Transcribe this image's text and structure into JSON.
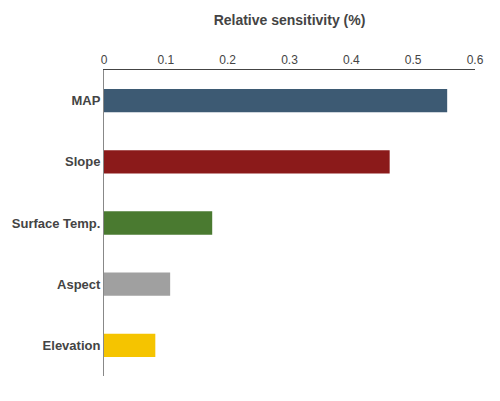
{
  "chart_data": {
    "type": "bar",
    "orientation": "horizontal",
    "categories": [
      "Elevation",
      "Aspect",
      "Surface Temp.",
      "Slope",
      "MAP"
    ],
    "values": [
      0.083,
      0.107,
      0.175,
      0.462,
      0.555
    ],
    "colors": [
      "#F5C400",
      "#A0A0A0",
      "#4A7A30",
      "#8B1A1A",
      "#3D5A73"
    ],
    "xlabel": "Relative sensitivity (%)",
    "xlim": [
      0,
      0.6
    ],
    "xticks": [
      0,
      0.1,
      0.2,
      0.3,
      0.4,
      0.5,
      0.6
    ],
    "grid": false
  }
}
